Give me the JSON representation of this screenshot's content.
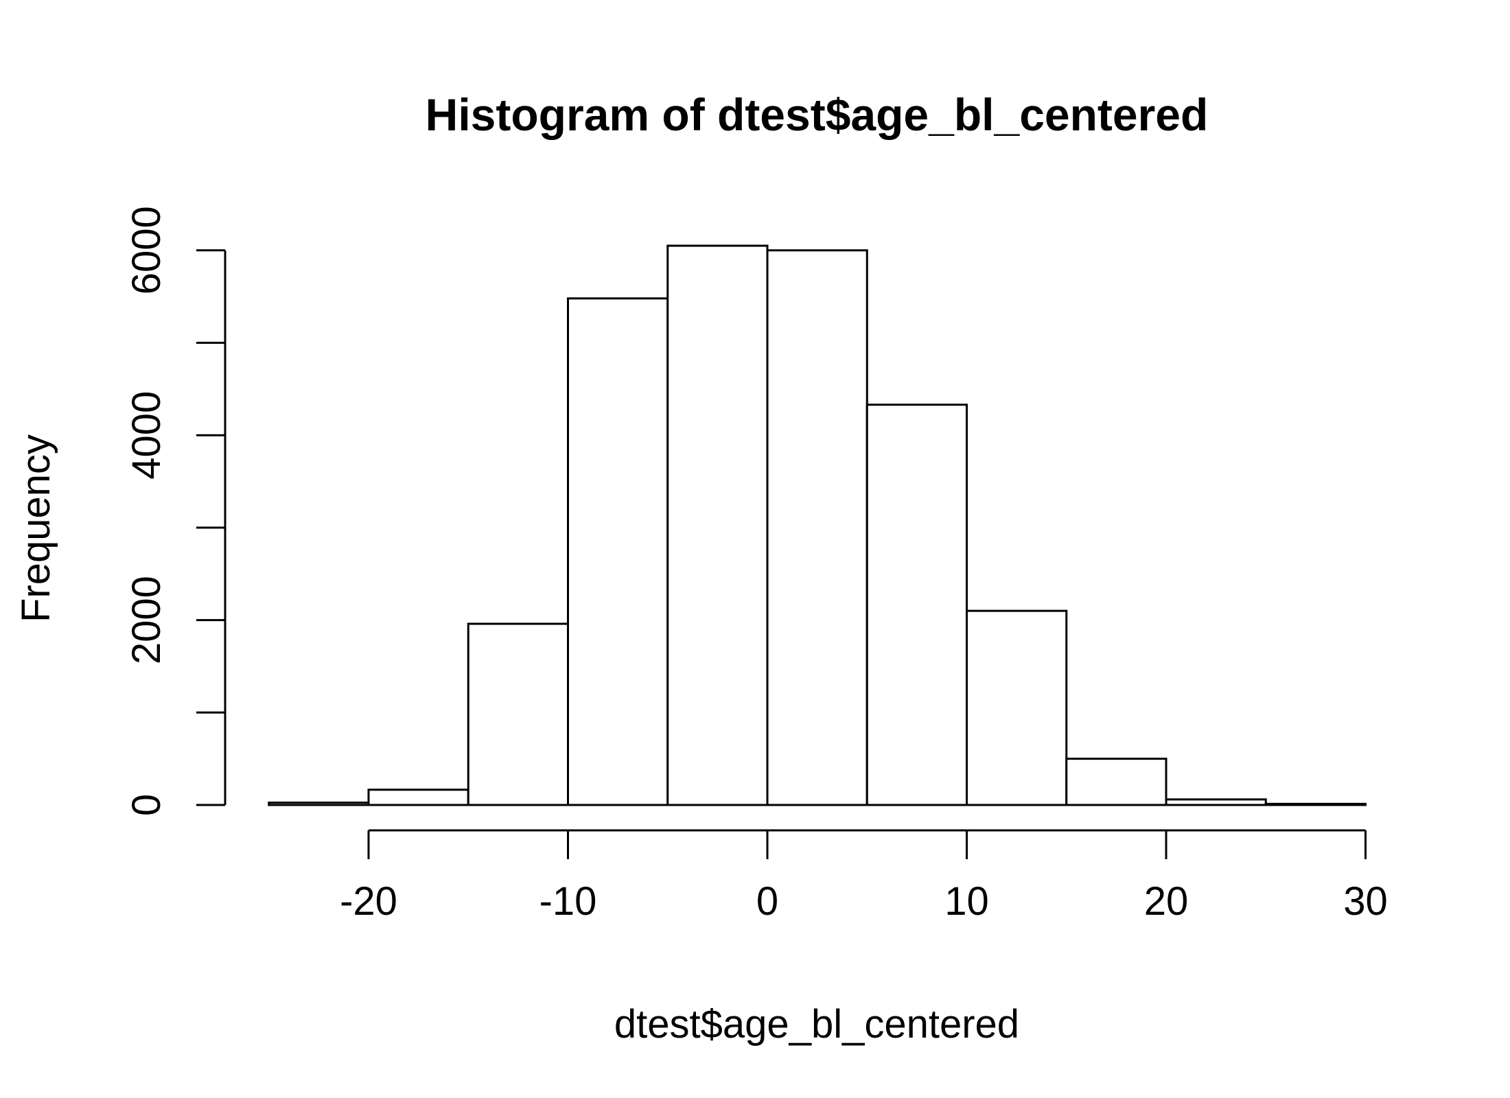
{
  "chart_data": {
    "type": "histogram",
    "title": "Histogram of dtest$age_bl_centered",
    "xlabel": "dtest$age_bl_centered",
    "ylabel": "Frequency",
    "bin_width": 5,
    "bins": [
      {
        "start": -25,
        "end": -20,
        "count": 25
      },
      {
        "start": -20,
        "end": -15,
        "count": 165
      },
      {
        "start": -15,
        "end": -10,
        "count": 1960
      },
      {
        "start": -10,
        "end": -5,
        "count": 5480
      },
      {
        "start": -5,
        "end": 0,
        "count": 6050
      },
      {
        "start": 0,
        "end": 5,
        "count": 6000
      },
      {
        "start": 5,
        "end": 10,
        "count": 4330
      },
      {
        "start": 10,
        "end": 15,
        "count": 2100
      },
      {
        "start": 15,
        "end": 20,
        "count": 500
      },
      {
        "start": 20,
        "end": 25,
        "count": 60
      },
      {
        "start": 25,
        "end": 30,
        "count": 12
      }
    ],
    "x_ticks": [
      -20,
      -10,
      0,
      10,
      20,
      30
    ],
    "x_tick_labels": [
      "-20",
      "-10",
      "0",
      "10",
      "20",
      "30"
    ],
    "y_ticks": [
      0,
      1000,
      2000,
      3000,
      4000,
      5000,
      6000
    ],
    "y_tick_labels": [
      "0",
      "2000",
      "4000",
      "6000"
    ],
    "y_labeled_ticks": [
      0,
      2000,
      4000,
      6000
    ],
    "xlim": [
      -25,
      30
    ],
    "ylim": [
      0,
      6050
    ],
    "grid": false,
    "legend": "none",
    "bar_fill": "#ffffff",
    "bar_stroke": "#000000"
  }
}
